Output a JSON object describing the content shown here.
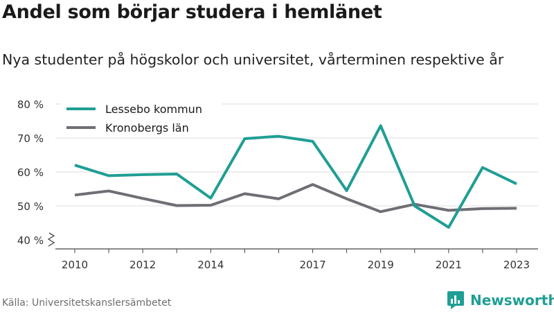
{
  "title": "Andel som börjar studera i hemlänet",
  "subtitle": "Nya studenter på högskolor och universitet, vårterminen respektive år",
  "source": "Källa: Universitetskanslersämbetet",
  "brand": {
    "name": "Newsworthy",
    "icon": "newsworthy-logo-icon",
    "color": "#1f9e94"
  },
  "chart_data": {
    "type": "line",
    "title": "Andel som börjar studera i hemlänet",
    "subtitle": "Nya studenter på högskolor och universitet, vårterminen respektive år",
    "x": [
      2010,
      2011,
      2012,
      2013,
      2014,
      2015,
      2016,
      2017,
      2018,
      2019,
      2020,
      2021,
      2022,
      2023
    ],
    "x_tick_labels": [
      "2010",
      "2012",
      "2014",
      "2017",
      "2019",
      "2021",
      "2023"
    ],
    "x_ticks": [
      2010,
      2011,
      2012,
      2013,
      2014,
      2015,
      2016,
      2017,
      2018,
      2019,
      2020,
      2021,
      2022,
      2023
    ],
    "y_ticks": [
      40,
      50,
      60,
      70,
      80
    ],
    "y_tick_labels": [
      "40 %",
      "50 %",
      "60 %",
      "70 %",
      "80 %"
    ],
    "ylim": [
      40,
      80
    ],
    "y_axis_break": true,
    "grid": true,
    "legend_position": "top-left",
    "series": [
      {
        "name": "Lessebo kommun",
        "color": "#1f9e94",
        "values": [
          62.0,
          58.9,
          59.2,
          59.4,
          52.3,
          69.8,
          70.5,
          69.0,
          54.5,
          73.6,
          50.0,
          43.7,
          61.3,
          56.5
        ]
      },
      {
        "name": "Kronobergs län",
        "color": "#6e6e75",
        "values": [
          53.2,
          54.4,
          52.2,
          50.1,
          50.2,
          53.6,
          52.1,
          56.3,
          52.1,
          48.3,
          50.5,
          48.7,
          49.2,
          49.3
        ]
      }
    ]
  }
}
